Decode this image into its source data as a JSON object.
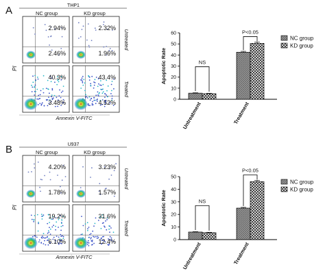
{
  "colors": {
    "nc_fill": "#8a8a8a",
    "kd_fill": "#ffffff",
    "axis": "#000000",
    "dot_blue": "#3a52c8",
    "dot_cyan": "#27b7c7",
    "dot_green": "#3db84a",
    "dot_yellow": "#e7df2f",
    "dot_red": "#d8262a",
    "dot_sparse": "#6f7ec0"
  },
  "panels": [
    {
      "letter": "A",
      "cell_line": "THP1",
      "group_labels": [
        "NC group",
        "KD group"
      ],
      "row_labels": [
        "Untreated",
        "Treated"
      ],
      "y_axis_label": "PI",
      "x_axis_label": "Annexin V-FITC",
      "flow_quadrants": [
        {
          "upper_right": "2.94%",
          "lower_right": "2.46%"
        },
        {
          "upper_right": "2.32%",
          "lower_right": "1.96%"
        },
        {
          "upper_right": "40.3%",
          "lower_right": "3.48%"
        },
        {
          "upper_right": "43.4%",
          "lower_right": "4.52%"
        }
      ]
    },
    {
      "letter": "B",
      "cell_line": "U937",
      "group_labels": [
        "NC group",
        "KD group"
      ],
      "row_labels": [
        "Untreated",
        "Treated"
      ],
      "y_axis_label": "PI",
      "x_axis_label": "Annexin V-FITC",
      "flow_quadrants": [
        {
          "upper_right": "4.20%",
          "lower_right": "1.78%"
        },
        {
          "upper_right": "3.23%",
          "lower_right": "1.57%"
        },
        {
          "upper_right": "19.2%",
          "lower_right": "6.10%"
        },
        {
          "upper_right": "31.6%",
          "lower_right": "12.4%"
        }
      ]
    }
  ],
  "chart_data": [
    {
      "type": "bar",
      "categories": [
        "Untreatment",
        "Treatment"
      ],
      "series": [
        {
          "name": "NC group",
          "values": [
            5.5,
            42.5
          ],
          "errors": [
            0.4,
            0.8
          ]
        },
        {
          "name": "KD group",
          "values": [
            5.0,
            50.5
          ],
          "errors": [
            0.4,
            1.2
          ]
        }
      ],
      "ylabel": "Apoptotic Rate",
      "ylim": [
        0,
        60
      ],
      "yticks": [
        0,
        10,
        20,
        30,
        40,
        50,
        60
      ],
      "annotations": [
        "NS",
        "P<0.05"
      ],
      "legend": "top-right",
      "grid": false
    },
    {
      "type": "bar",
      "categories": [
        "Untreatment",
        "Treatment"
      ],
      "series": [
        {
          "name": "NC group",
          "values": [
            6.0,
            25.0
          ],
          "errors": [
            0.3,
            0.6
          ]
        },
        {
          "name": "KD group",
          "values": [
            5.5,
            46.0
          ],
          "errors": [
            0.3,
            1.0
          ]
        }
      ],
      "ylabel": "Apoptotic Rate",
      "ylim": [
        0,
        50
      ],
      "yticks": [
        0,
        10,
        20,
        30,
        40,
        50
      ],
      "annotations": [
        "NS",
        "P<0.05"
      ],
      "legend": "top-right",
      "grid": false
    }
  ]
}
